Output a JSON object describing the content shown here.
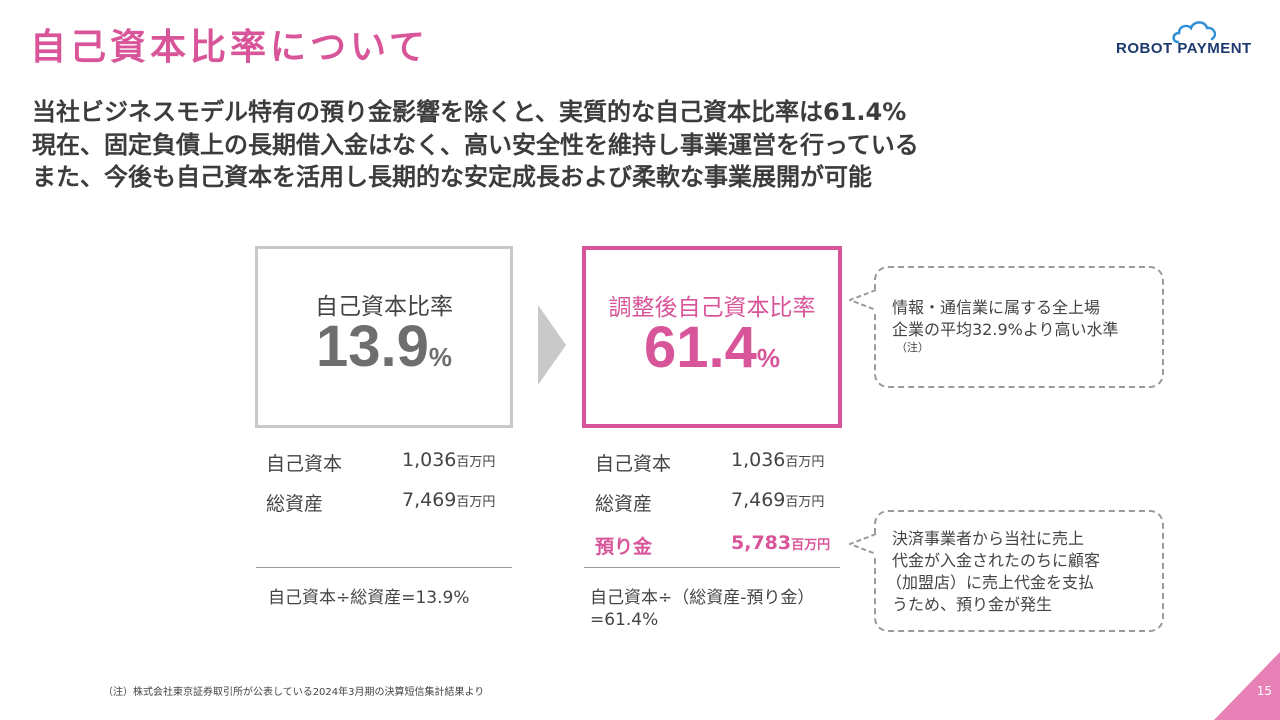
{
  "header": {
    "title": "自己資本比率について",
    "logo_text_1": "ROBOT",
    "logo_text_2": "PAYMENT"
  },
  "lead": {
    "line1": "当社ビジネスモデル特有の預り金影響を除くと、実質的な自己資本比率は61.4%",
    "line2": "現在、固定負債上の長期借入金はなく、高い安全性を維持し事業運営を行っている",
    "line3": "また、今後も自己資本を活用し長期的な安定成長および柔軟な事業展開が可能"
  },
  "left": {
    "label": "自己資本比率",
    "value": "13.9",
    "unit": "%",
    "rows": [
      {
        "label": "自己資本",
        "value": "1,036",
        "unit": "百万円"
      },
      {
        "label": "総資産",
        "value": "7,469",
        "unit": "百万円"
      }
    ],
    "formula": "自己資本÷総資産=13.9%"
  },
  "right": {
    "label": "調整後自己資本比率",
    "value": "61.4",
    "unit": "%",
    "rows": [
      {
        "label": "自己資本",
        "value": "1,036",
        "unit": "百万円"
      },
      {
        "label": "総資産",
        "value": "7,469",
        "unit": "百万円"
      },
      {
        "label": "預り金",
        "value": "5,783",
        "unit": "百万円"
      }
    ],
    "formula_line1": "自己資本÷（総資産-預り金）",
    "formula_line2": "=61.4%"
  },
  "callouts": {
    "top": {
      "line1": "情報・通信業に属する全上場",
      "line2": "企業の平均32.9%より高い水準",
      "note": "（注）"
    },
    "bottom": {
      "line1": "決済事業者から当社に売上",
      "line2": "代金が入金されたのちに顧客",
      "line3": "（加盟店）に売上代金を支払",
      "line4": "うため、預り金が発生"
    }
  },
  "footnote": "（注）株式会社東京証券取引所が公表している2024年3月期の決算短信集計結果より",
  "page_number": "15",
  "colors": {
    "accent": "#d9559a",
    "text": "#3c3c3c",
    "box_border_gray": "#c8c8c8",
    "arrow_gray": "#c9c9c9",
    "logo_navy": "#1d3a6e",
    "logo_cloud": "#2f8fd6"
  }
}
